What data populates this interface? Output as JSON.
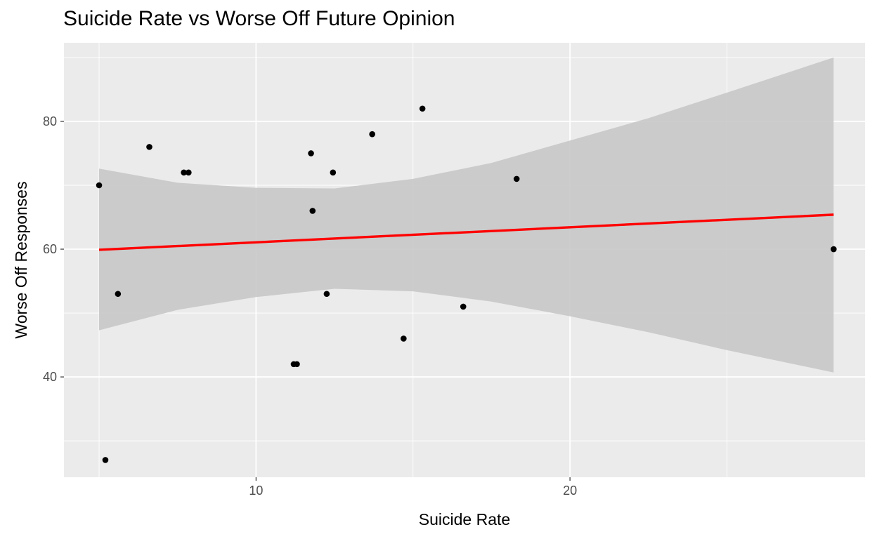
{
  "chart_data": {
    "type": "scatter",
    "title": "Suicide Rate vs Worse Off Future Opinion",
    "xlabel": "Suicide Rate",
    "ylabel": "Worse Off Responses",
    "xlim": [
      3.88,
      29.4
    ],
    "ylim": [
      24.3,
      92.3
    ],
    "x_ticks": [
      10,
      20
    ],
    "y_ticks": [
      40,
      60,
      80
    ],
    "grid": true,
    "points": [
      {
        "x": 5.0,
        "y": 70
      },
      {
        "x": 5.2,
        "y": 27
      },
      {
        "x": 5.6,
        "y": 53
      },
      {
        "x": 6.6,
        "y": 76
      },
      {
        "x": 7.7,
        "y": 72
      },
      {
        "x": 7.85,
        "y": 72
      },
      {
        "x": 11.2,
        "y": 42
      },
      {
        "x": 11.3,
        "y": 42
      },
      {
        "x": 11.75,
        "y": 75
      },
      {
        "x": 11.8,
        "y": 66
      },
      {
        "x": 12.25,
        "y": 53
      },
      {
        "x": 12.45,
        "y": 72
      },
      {
        "x": 13.7,
        "y": 78
      },
      {
        "x": 14.7,
        "y": 46
      },
      {
        "x": 15.3,
        "y": 82
      },
      {
        "x": 16.6,
        "y": 51
      },
      {
        "x": 18.3,
        "y": 71
      },
      {
        "x": 28.4,
        "y": 60
      }
    ],
    "fit_line": {
      "x": [
        5.0,
        28.4
      ],
      "y": [
        59.9,
        65.4
      ],
      "color": "#ff0000"
    },
    "confidence_band": {
      "x": [
        5.0,
        7.5,
        10.0,
        12.5,
        15.0,
        17.5,
        20.0,
        22.5,
        25.0,
        28.4
      ],
      "lower": [
        47.3,
        50.5,
        52.5,
        53.8,
        53.4,
        51.8,
        49.5,
        47.0,
        44.2,
        40.7
      ],
      "upper": [
        72.6,
        70.4,
        69.6,
        69.5,
        71.0,
        73.5,
        77.0,
        80.5,
        84.5,
        90.0
      ],
      "color": "#c8c8c8"
    },
    "colors": {
      "panel": "#ebebeb",
      "grid": "#ffffff",
      "point": "#000000"
    }
  }
}
